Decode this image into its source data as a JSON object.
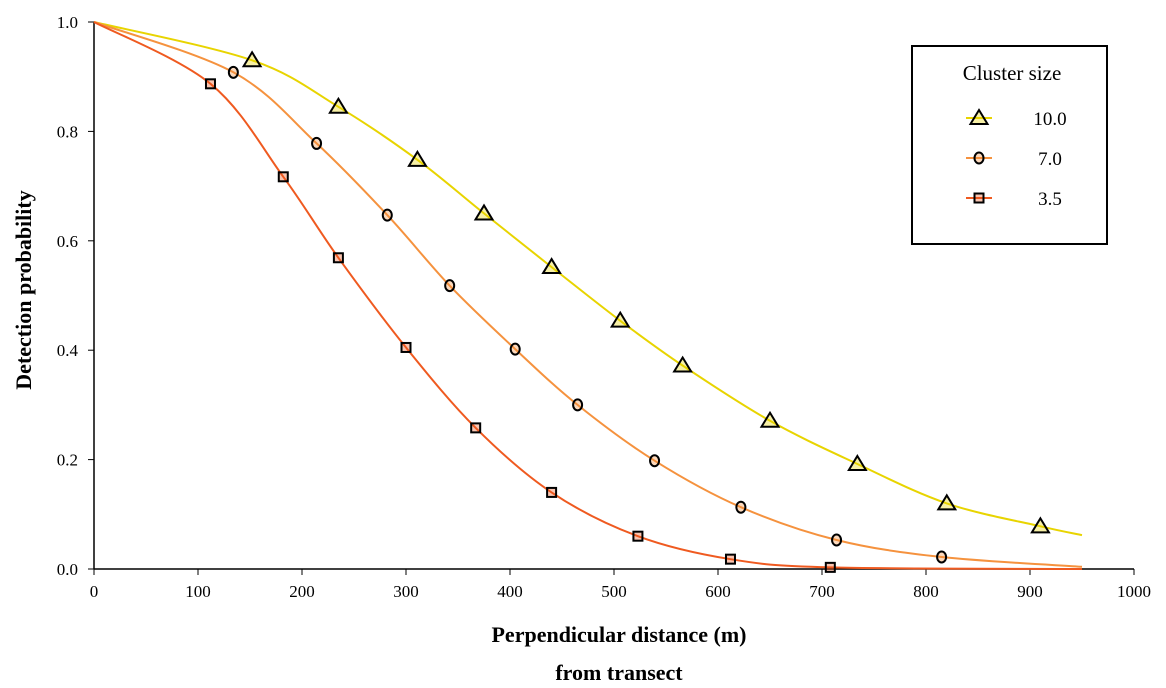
{
  "chart_data": {
    "type": "line",
    "title": "",
    "xlabel": "Perpendicular distance (m)",
    "xlabel_line2": "from transect",
    "ylabel": "Detection probability",
    "xlim": [
      0,
      1000
    ],
    "ylim": [
      0,
      1.0
    ],
    "x_ticks": [
      "0",
      "100",
      "200",
      "300",
      "400",
      "500",
      "600",
      "700",
      "800",
      "900",
      "1000"
    ],
    "y_ticks": [
      "0.0",
      "0.2",
      "0.4",
      "0.6",
      "0.8",
      "1.0"
    ],
    "grid": false,
    "legend": {
      "title": "Cluster size",
      "position": "top-right"
    },
    "series": [
      {
        "name": "10.0",
        "color": "#e8d400",
        "marker": "triangle",
        "points": [
          [
            152,
            0.93
          ],
          [
            235,
            0.845
          ],
          [
            311,
            0.748
          ],
          [
            375,
            0.65
          ],
          [
            440,
            0.552
          ],
          [
            506,
            0.454
          ],
          [
            566,
            0.372
          ],
          [
            650,
            0.271
          ],
          [
            734,
            0.192
          ],
          [
            820,
            0.12
          ],
          [
            910,
            0.078
          ]
        ],
        "curve_end": [
          950,
          0.062
        ]
      },
      {
        "name": "7.0",
        "color": "#f5923e",
        "marker": "circle",
        "points": [
          [
            134,
            0.908
          ],
          [
            214,
            0.778
          ],
          [
            282,
            0.647
          ],
          [
            342,
            0.518
          ],
          [
            405,
            0.402
          ],
          [
            465,
            0.3
          ],
          [
            539,
            0.198
          ],
          [
            622,
            0.113
          ],
          [
            714,
            0.053
          ],
          [
            815,
            0.022
          ]
        ],
        "curve_end": [
          950,
          0.004
        ]
      },
      {
        "name": "3.5",
        "color": "#ef5a20",
        "marker": "square",
        "points": [
          [
            112,
            0.887
          ],
          [
            182,
            0.717
          ],
          [
            235,
            0.569
          ],
          [
            300,
            0.405
          ],
          [
            367,
            0.258
          ],
          [
            440,
            0.14
          ],
          [
            523,
            0.06
          ],
          [
            612,
            0.018
          ],
          [
            708,
            0.003
          ]
        ],
        "curve_end": [
          950,
          0.0
        ]
      }
    ]
  }
}
